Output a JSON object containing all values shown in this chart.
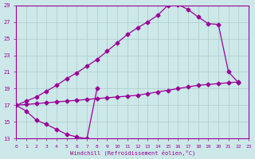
{
  "xlabel": "Windchill (Refroidissement éolien,°C)",
  "bg_color": "#cce8e8",
  "grid_color": "#aacccc",
  "line_color": "#990099",
  "xlim": [
    0,
    23
  ],
  "ylim": [
    13,
    29
  ],
  "xticks": [
    0,
    1,
    2,
    3,
    4,
    5,
    6,
    7,
    8,
    9,
    10,
    11,
    12,
    13,
    14,
    15,
    16,
    17,
    18,
    19,
    20,
    21,
    22,
    23
  ],
  "yticks": [
    13,
    15,
    17,
    19,
    21,
    23,
    25,
    27,
    29
  ],
  "line1_x": [
    0,
    1,
    2,
    3,
    4,
    5,
    6,
    7,
    8
  ],
  "line1_y": [
    17.0,
    16.3,
    15.2,
    14.7,
    14.1,
    13.5,
    13.2,
    13.0,
    19.0
  ],
  "line2_x": [
    0,
    1,
    2,
    3,
    4,
    5,
    6,
    7,
    8,
    9,
    10,
    11,
    12,
    13,
    14,
    15,
    16,
    17,
    18,
    19,
    20,
    21,
    22
  ],
  "line2_y": [
    17.0,
    17.5,
    18.0,
    18.7,
    19.4,
    20.2,
    20.9,
    21.7,
    22.5,
    23.5,
    24.5,
    25.5,
    26.3,
    27.0,
    27.8,
    29.0,
    29.1,
    28.5,
    27.6,
    26.8,
    26.7,
    21.0,
    19.7
  ],
  "line3_x": [
    0,
    1,
    2,
    3,
    4,
    5,
    6,
    7,
    8,
    9,
    10,
    11,
    12,
    13,
    14,
    15,
    16,
    17,
    18,
    19,
    20,
    21,
    22
  ],
  "line3_y": [
    17.0,
    17.1,
    17.2,
    17.3,
    17.4,
    17.5,
    17.6,
    17.7,
    17.8,
    17.9,
    18.0,
    18.1,
    18.2,
    18.4,
    18.6,
    18.8,
    19.0,
    19.2,
    19.4,
    19.5,
    19.6,
    19.7,
    19.8
  ]
}
